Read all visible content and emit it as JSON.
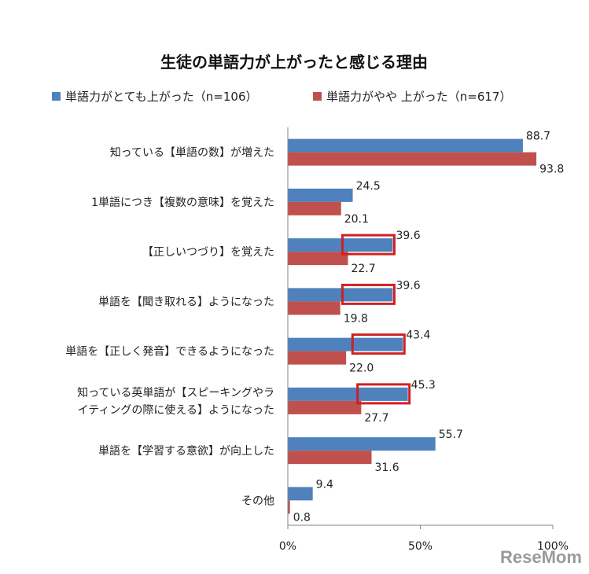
{
  "chart_data": {
    "type": "bar",
    "orientation": "horizontal",
    "title": "生徒の単語力が上がったと感じる理由",
    "categories": [
      [
        "知っている【単語の数】が増えた"
      ],
      [
        "1単語につき【複数の意味】を覚えた"
      ],
      [
        "【正しいつづり】を覚えた"
      ],
      [
        "単語を【聞き取れる】ようになった"
      ],
      [
        "単語を【正しく発音】できるようになった"
      ],
      [
        "知っている英単語が【スピーキングやラ",
        "イティングの際に使える】ようになった"
      ],
      [
        "単語を【学習する意欲】が向上した"
      ],
      [
        "その他"
      ]
    ],
    "series": [
      {
        "name": "単語力がとても上がった（n=106）",
        "color": "#4f81bd",
        "values": [
          88.7,
          24.5,
          39.6,
          39.6,
          43.4,
          45.3,
          55.7,
          9.4
        ]
      },
      {
        "name": "単語力がやや 上がった（n=617）",
        "color": "#c0504d",
        "values": [
          93.8,
          20.1,
          22.7,
          19.8,
          22.0,
          27.7,
          31.6,
          0.8
        ]
      }
    ],
    "highlighted_categories": [
      2,
      3,
      4,
      5
    ],
    "highlight_color": "#d02020",
    "xlim": [
      0,
      100
    ],
    "xticks": [
      "0%",
      "50%",
      "100%"
    ],
    "grid": false,
    "legend_position": "top"
  },
  "watermark": "ReseMom"
}
